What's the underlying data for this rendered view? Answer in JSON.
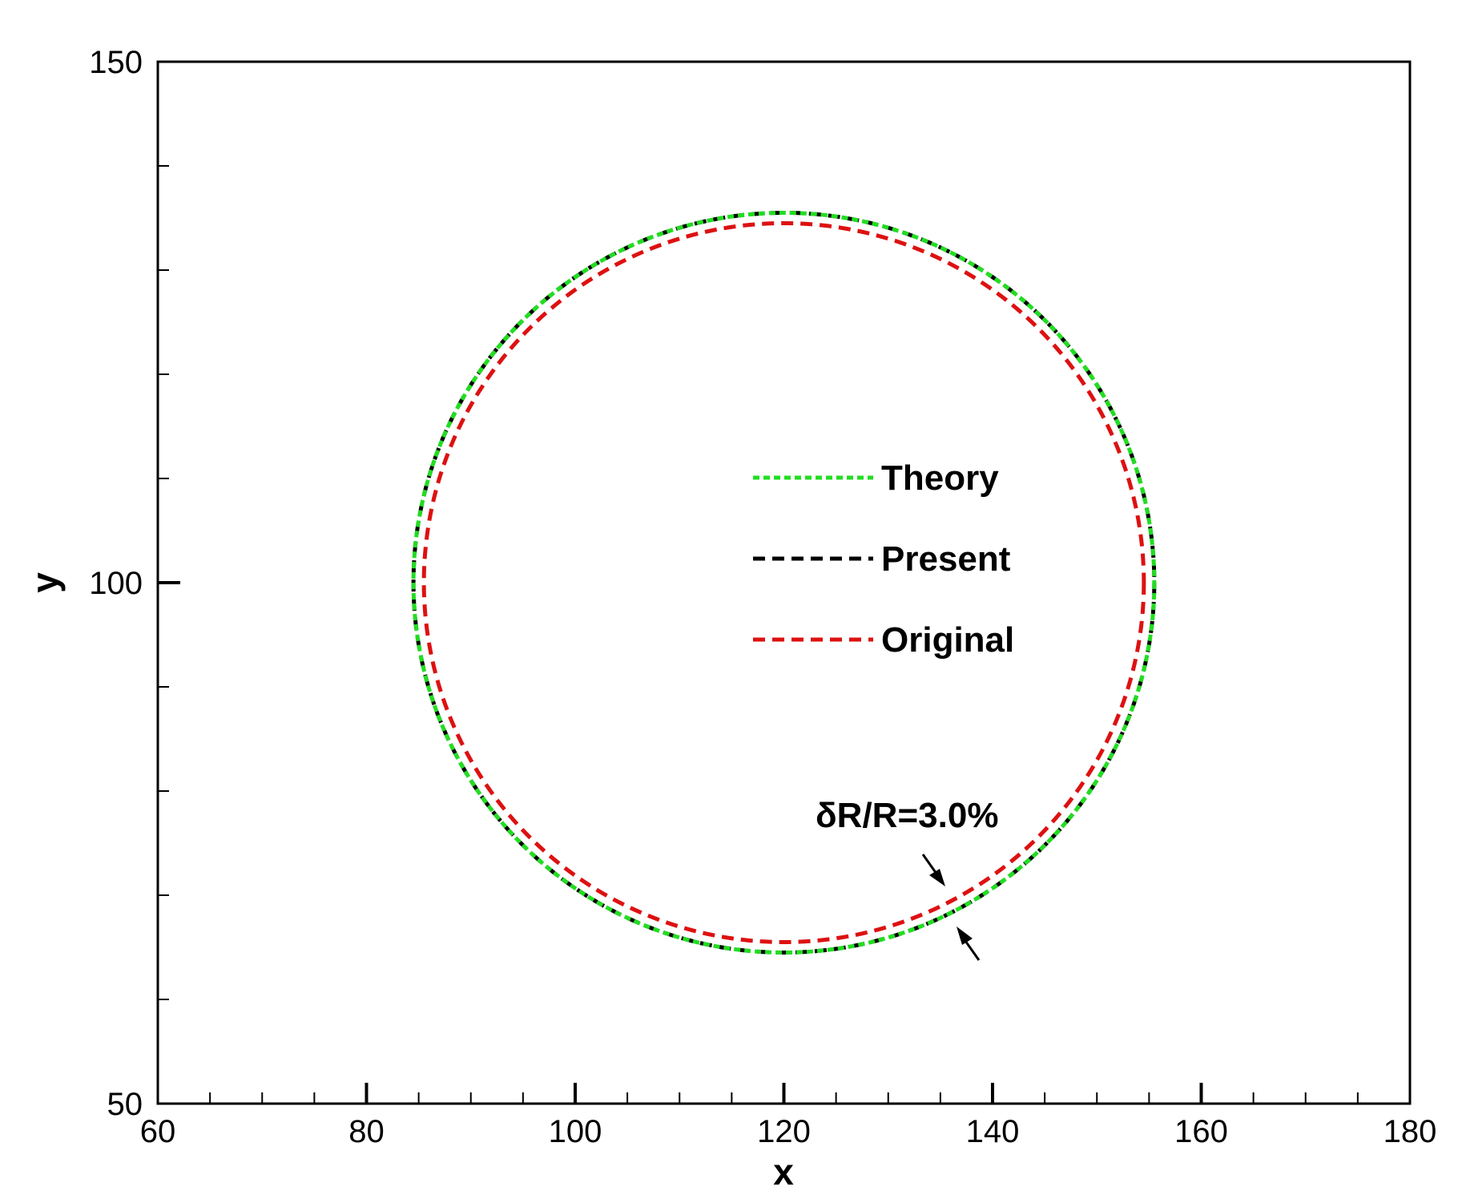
{
  "chart_data": {
    "type": "line",
    "xlabel": "x",
    "ylabel": "y",
    "xlim": [
      60,
      180
    ],
    "ylim": [
      50,
      150
    ],
    "x_ticks": [
      "60",
      "80",
      "100",
      "120",
      "140",
      "160",
      "180"
    ],
    "y_ticks": [
      "50",
      "100",
      "150"
    ],
    "x_minor_step": 5,
    "y_minor_step": 10,
    "grid": false,
    "legend_placement": "center (inside the circles)",
    "series": [
      {
        "name": "Theory",
        "shape": "circle",
        "center": [
          120,
          100
        ],
        "radius": 35.5,
        "color": "#22dd22",
        "dash": "dotted"
      },
      {
        "name": "Present",
        "shape": "circle",
        "center": [
          120,
          100
        ],
        "radius": 35.5,
        "color": "#000000",
        "dash": "dashed"
      },
      {
        "name": "Original",
        "shape": "circle",
        "center": [
          120,
          100
        ],
        "radius": 34.5,
        "color": "#dd1111",
        "dash": "dashed"
      }
    ],
    "annotations": [
      {
        "text": "δR/R=3.0%",
        "points_to": [
          136.5,
          68.5
        ]
      }
    ]
  }
}
